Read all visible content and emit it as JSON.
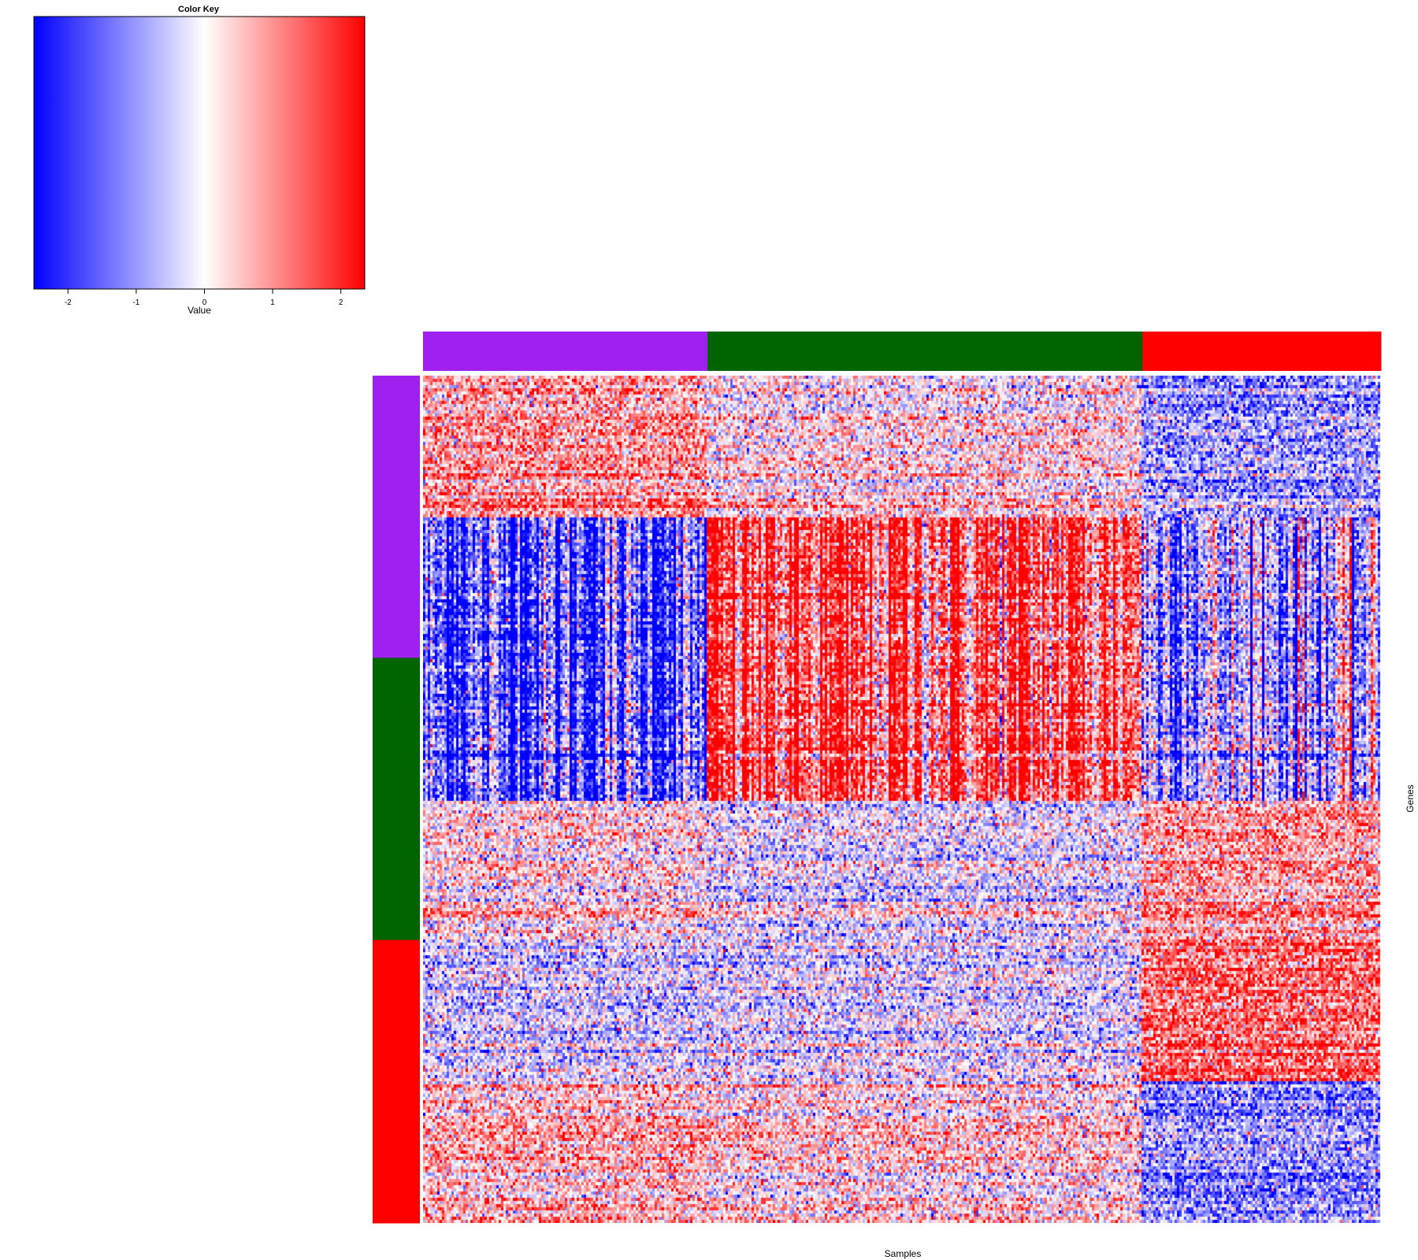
{
  "chart_data": {
    "type": "heatmap",
    "title": "",
    "xlabel": "Samples",
    "ylabel": "Genes",
    "color_key": {
      "title": "Color Key",
      "xlabel": "Value",
      "range": [
        -2.5,
        2.35
      ],
      "ticks": [
        -2,
        -1,
        0,
        1,
        2
      ],
      "colors": {
        "low": "#0000ff",
        "mid": "#ffffff",
        "high": "#ff0000"
      }
    },
    "column_groups": [
      {
        "name": "purple",
        "color": "#a020f0",
        "fraction": 0.297
      },
      {
        "name": "darkgreen",
        "color": "#006400",
        "fraction": 0.454
      },
      {
        "name": "red",
        "color": "#ff0000",
        "fraction": 0.249
      }
    ],
    "row_groups": [
      {
        "name": "purple",
        "color": "#a020f0",
        "fraction": 0.333
      },
      {
        "name": "darkgreen",
        "color": "#006400",
        "fraction": 0.333
      },
      {
        "name": "red",
        "color": "#ff0000",
        "fraction": 0.334
      }
    ],
    "blocks": {
      "row_fractions": [
        0.167,
        0.333,
        0.166,
        0.167,
        0.167
      ],
      "means": [
        [
          0.9,
          0.2,
          -1.0
        ],
        [
          -1.6,
          1.5,
          -0.7
        ],
        [
          0.3,
          -0.2,
          0.9
        ],
        [
          -0.5,
          -0.4,
          1.3
        ],
        [
          0.6,
          0.3,
          -1.1
        ]
      ],
      "column_effect_rows": [
        1
      ]
    }
  }
}
